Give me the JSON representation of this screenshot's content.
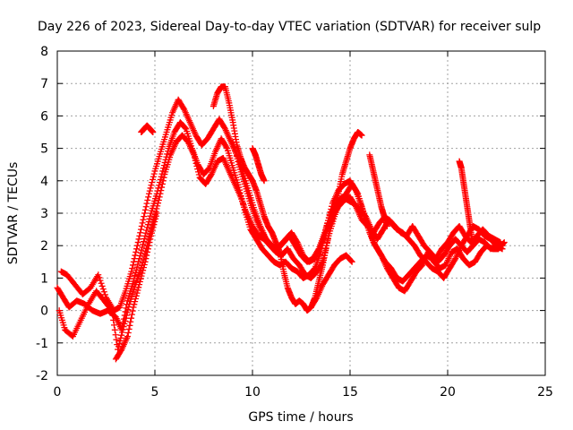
{
  "chart_data": {
    "type": "scatter",
    "title": "Day 226 of 2023, Sidereal Day-to-day VTEC variation (SDTVAR) for receiver sulp",
    "xlabel": "GPS time / hours",
    "ylabel": "SDTVAR / TECUs",
    "xlim": [
      0,
      25
    ],
    "ylim": [
      -2,
      8
    ],
    "xticks": [
      "0",
      "5",
      "10",
      "15",
      "20",
      "25"
    ],
    "yticks": [
      "-2",
      "-1",
      "0",
      "1",
      "2",
      "3",
      "4",
      "5",
      "6",
      "7",
      "8"
    ],
    "grid": true,
    "marker": "+",
    "color": "#ff0000",
    "series": [
      {
        "name": "trace-1",
        "x": [
          0.0,
          0.3,
          0.6,
          1.0,
          1.4,
          1.8,
          2.2,
          2.6,
          3.0,
          3.3,
          3.6,
          3.9,
          4.2,
          4.5,
          4.8,
          5.1,
          5.4,
          5.7,
          6.0,
          6.3,
          6.6,
          6.9,
          7.2,
          7.5,
          7.8,
          8.1,
          8.4,
          8.7,
          9.0,
          9.3,
          9.6,
          9.9,
          10.2,
          10.5,
          10.8,
          11.1,
          11.4,
          11.7,
          12.0,
          12.3,
          12.6,
          12.9,
          13.2,
          13.5,
          13.8,
          14.1,
          14.4,
          14.7,
          15.0,
          15.3,
          15.6,
          15.9,
          16.2,
          16.5,
          16.8,
          17.1,
          17.4,
          17.7,
          18.0,
          18.3,
          18.6,
          18.9,
          19.2,
          19.5,
          19.8,
          20.1,
          20.4,
          20.7,
          21.0,
          21.3,
          21.6,
          21.9,
          22.2,
          22.5,
          22.8
        ],
        "y": [
          0.7,
          0.4,
          0.1,
          0.3,
          0.2,
          0.0,
          -0.1,
          0.0,
          -0.2,
          -0.6,
          0.3,
          0.9,
          1.6,
          2.3,
          3.0,
          3.6,
          4.3,
          5.0,
          5.5,
          5.8,
          5.6,
          5.0,
          4.5,
          4.2,
          4.4,
          4.9,
          5.3,
          5.0,
          4.4,
          3.8,
          3.1,
          2.5,
          2.2,
          1.9,
          1.7,
          1.5,
          1.4,
          1.5,
          1.3,
          1.2,
          1.0,
          1.1,
          1.3,
          1.8,
          2.6,
          3.3,
          3.7,
          3.9,
          4.0,
          3.7,
          3.2,
          2.6,
          2.1,
          1.8,
          1.5,
          1.3,
          1.0,
          0.9,
          1.1,
          1.3,
          1.5,
          1.7,
          1.6,
          1.5,
          1.7,
          2.0,
          2.2,
          2.0,
          1.8,
          2.0,
          2.2,
          2.1,
          1.9,
          2.0,
          2.0
        ]
      },
      {
        "name": "trace-2",
        "x": [
          0.1,
          0.4,
          0.8,
          1.2,
          1.6,
          2.0,
          2.4,
          2.8,
          3.1,
          3.4,
          3.7,
          4.0,
          4.3,
          4.6,
          4.9,
          5.2,
          5.5,
          5.8,
          6.1,
          6.4,
          6.7,
          7.0,
          7.3,
          7.6,
          7.9,
          8.2,
          8.5,
          8.8,
          9.1,
          9.4,
          9.7,
          10.0,
          10.3,
          10.6,
          10.9,
          11.2,
          11.5,
          11.8,
          12.1,
          12.4,
          12.7,
          13.0,
          13.3,
          13.6,
          13.9,
          14.2,
          14.5,
          14.8,
          15.1,
          15.4,
          15.7,
          16.0,
          16.3,
          16.6,
          16.9,
          17.2,
          17.5,
          17.8,
          18.1,
          18.4,
          18.7,
          19.0,
          19.3,
          19.6,
          19.9,
          20.2,
          20.5,
          20.8,
          21.1,
          21.4,
          21.7,
          22.0,
          22.3,
          22.6,
          22.9
        ],
        "y": [
          0.0,
          -0.6,
          -0.8,
          -0.3,
          0.2,
          0.6,
          0.3,
          0.0,
          -1.2,
          -0.5,
          0.2,
          0.8,
          1.3,
          2.0,
          2.7,
          3.4,
          4.2,
          4.8,
          5.2,
          5.4,
          5.2,
          4.8,
          4.1,
          3.9,
          4.2,
          4.6,
          4.7,
          4.3,
          3.9,
          3.5,
          3.0,
          2.6,
          2.3,
          2.2,
          2.0,
          1.8,
          1.7,
          1.9,
          1.6,
          1.4,
          1.1,
          1.0,
          1.2,
          1.5,
          2.3,
          2.9,
          3.4,
          3.6,
          3.9,
          3.6,
          3.0,
          2.4,
          2.0,
          1.7,
          1.3,
          1.0,
          0.7,
          0.6,
          0.9,
          1.2,
          1.4,
          1.8,
          1.5,
          1.3,
          1.4,
          1.8,
          1.9,
          1.6,
          1.4,
          1.5,
          1.8,
          2.0,
          1.9,
          1.9,
          2.1
        ]
      },
      {
        "name": "trace-3",
        "x": [
          0.2,
          0.5,
          0.9,
          1.3,
          1.7,
          2.1,
          2.5,
          2.9,
          3.2,
          3.5,
          3.8,
          4.1,
          4.4,
          4.7,
          5.0,
          5.3,
          5.6,
          5.9,
          6.2,
          6.5,
          6.8,
          7.1,
          7.4,
          7.7,
          8.0,
          8.3,
          8.6,
          8.9,
          9.2,
          9.5,
          9.8,
          10.1,
          10.4,
          10.7,
          11.0,
          11.3,
          11.6,
          11.9,
          12.2,
          12.5,
          12.8,
          13.1,
          13.4,
          13.7,
          14.0,
          14.3,
          14.6,
          14.9,
          15.2,
          15.5,
          15.8,
          16.1,
          16.4,
          16.7,
          17.0,
          17.3,
          17.6,
          17.9,
          18.2,
          18.5,
          18.8,
          19.1,
          19.4,
          19.7,
          20.0,
          20.3,
          20.6,
          20.9,
          21.2,
          21.5,
          21.8,
          22.1,
          22.4,
          22.7
        ],
        "y": [
          1.2,
          1.1,
          0.8,
          0.5,
          0.7,
          1.1,
          0.4,
          0.0,
          0.1,
          0.6,
          1.2,
          2.0,
          2.8,
          3.6,
          4.3,
          4.9,
          5.5,
          6.1,
          6.5,
          6.2,
          5.8,
          5.4,
          5.1,
          5.3,
          5.6,
          5.9,
          5.6,
          5.2,
          4.8,
          4.3,
          3.7,
          3.1,
          2.6,
          2.2,
          2.0,
          1.9,
          2.1,
          2.3,
          2.0,
          1.7,
          1.5,
          1.6,
          1.9,
          2.4,
          3.0,
          3.3,
          3.5,
          3.4,
          3.3,
          3.1,
          2.9,
          2.5,
          2.2,
          2.5,
          2.8,
          2.6,
          2.4,
          2.3,
          2.6,
          2.3,
          2.0,
          1.8,
          1.6,
          1.9,
          2.1,
          2.4,
          2.6,
          2.3,
          2.1,
          2.3,
          2.5,
          2.3,
          2.2,
          2.1
        ]
      },
      {
        "name": "trace-4",
        "x": [
          8.0,
          8.2,
          8.4,
          8.6,
          8.8,
          9.0,
          9.2,
          9.4,
          9.6,
          9.8,
          10.0,
          10.2,
          10.4,
          10.6,
          10.8,
          11.0,
          11.2,
          11.4,
          11.6,
          11.8,
          12.0,
          12.2,
          12.4,
          12.6,
          12.8,
          13.0,
          13.2,
          13.4,
          13.6,
          13.8,
          14.0,
          14.2,
          14.4,
          14.6,
          14.8,
          15.0,
          15.2,
          15.4,
          15.6
        ],
        "y": [
          6.3,
          6.7,
          6.9,
          6.9,
          6.4,
          5.8,
          5.1,
          4.7,
          4.4,
          4.2,
          4.0,
          3.7,
          3.3,
          2.9,
          2.6,
          2.4,
          2.1,
          1.8,
          1.2,
          0.7,
          0.4,
          0.2,
          0.3,
          0.2,
          0.0,
          0.1,
          0.4,
          0.9,
          1.4,
          2.0,
          2.6,
          3.1,
          3.6,
          4.2,
          4.6,
          5.0,
          5.3,
          5.5,
          5.4
        ]
      },
      {
        "name": "trace-5",
        "x": [
          9.0,
          9.3,
          9.6,
          9.9,
          10.2,
          10.5,
          10.8,
          11.1,
          11.4,
          11.7,
          12.0,
          12.3,
          12.6,
          12.9,
          13.2,
          13.5,
          13.8,
          14.1,
          14.4,
          14.7,
          15.0,
          15.3,
          15.6,
          15.9,
          16.2,
          16.5,
          16.8,
          17.1,
          17.4,
          17.7,
          18.0,
          18.3,
          18.6,
          18.9,
          19.2,
          19.5,
          19.8,
          20.1,
          20.4,
          20.7,
          21.0,
          21.3,
          21.6,
          21.9,
          22.2,
          22.5,
          22.8
        ],
        "y": [
          5.2,
          4.5,
          3.9,
          3.3,
          2.8,
          2.4,
          2.1,
          1.9,
          2.0,
          2.2,
          2.4,
          2.1,
          1.7,
          1.5,
          1.6,
          2.0,
          2.5,
          2.9,
          3.2,
          3.4,
          3.5,
          3.2,
          2.8,
          2.6,
          2.4,
          2.7,
          2.9,
          2.7,
          2.5,
          2.4,
          2.2,
          2.0,
          1.7,
          1.5,
          1.3,
          1.2,
          1.0,
          1.3,
          1.6,
          2.0,
          2.3,
          2.6,
          2.5,
          2.3,
          2.2,
          2.0,
          1.9
        ]
      },
      {
        "name": "trace-6",
        "x": [
          4.3,
          4.45,
          4.6,
          4.75,
          4.9
        ],
        "y": [
          5.5,
          5.6,
          5.7,
          5.6,
          5.5
        ]
      },
      {
        "name": "trace-7",
        "x": [
          10.0,
          10.15,
          10.3,
          10.45,
          10.6
        ],
        "y": [
          5.0,
          4.8,
          4.5,
          4.2,
          4.0
        ]
      },
      {
        "name": "trace-8",
        "x": [
          20.6,
          20.7,
          20.8,
          20.9,
          21.0,
          21.1,
          21.2,
          21.3
        ],
        "y": [
          4.6,
          4.4,
          4.0,
          3.6,
          3.2,
          2.8,
          2.4,
          2.0
        ]
      },
      {
        "name": "trace-9",
        "x": [
          16.0,
          16.15,
          16.3,
          16.45,
          16.6,
          16.75,
          16.9
        ],
        "y": [
          4.8,
          4.4,
          4.0,
          3.6,
          3.2,
          2.9,
          2.6
        ]
      },
      {
        "name": "trace-10",
        "x": [
          13.0,
          13.3,
          13.6,
          13.9,
          14.2,
          14.5,
          14.8,
          15.1
        ],
        "y": [
          0.1,
          0.4,
          0.8,
          1.1,
          1.4,
          1.6,
          1.7,
          1.5
        ]
      },
      {
        "name": "trace-11",
        "x": [
          3.0,
          3.3,
          3.6,
          3.9,
          4.2,
          4.5,
          4.8,
          5.1
        ],
        "y": [
          -1.5,
          -1.2,
          -0.8,
          0.1,
          0.8,
          1.5,
          2.3,
          3.0
        ]
      }
    ]
  }
}
